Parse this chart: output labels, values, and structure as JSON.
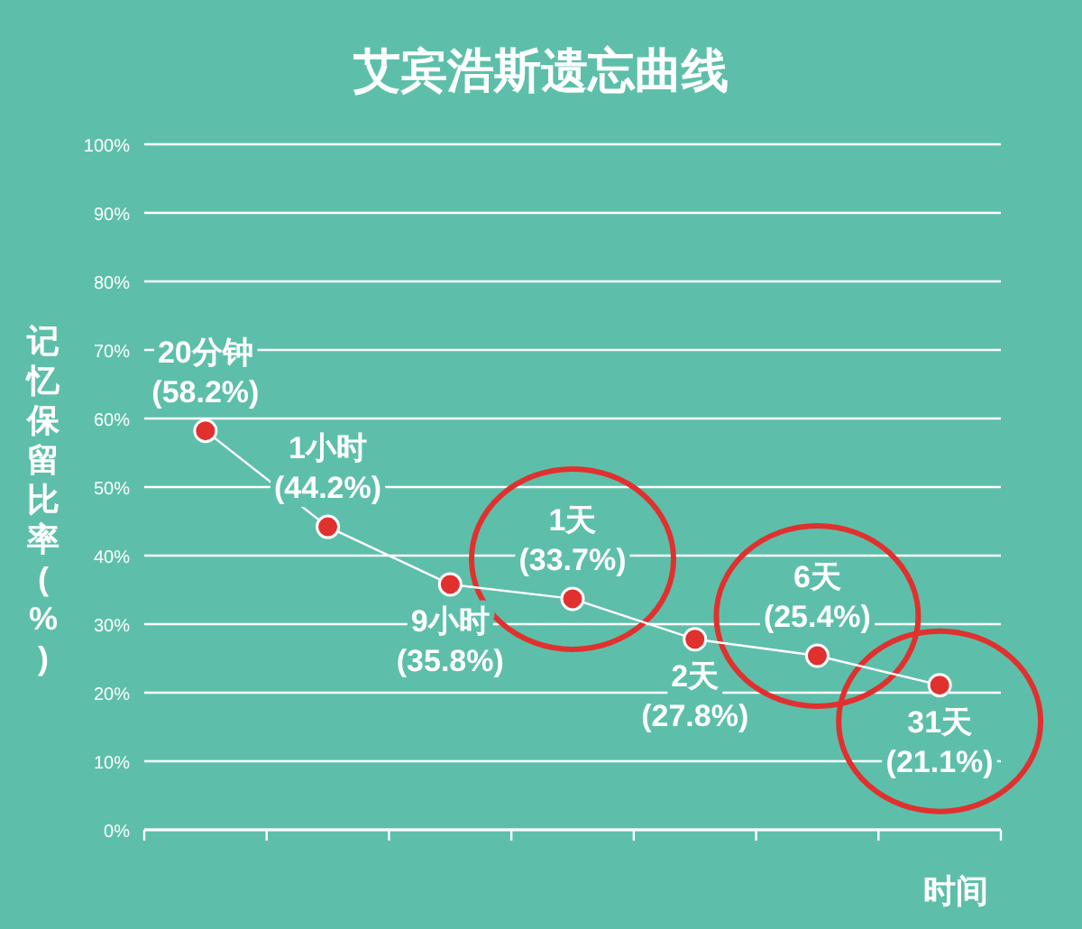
{
  "chart_data": {
    "type": "line",
    "title": "艾宾浩斯遗忘曲线",
    "ylabel": "记忆保留比率(%)",
    "xlabel": "时间",
    "categories": [
      "20分钟",
      "1小时",
      "9小时",
      "1天",
      "2天",
      "6天",
      "31天"
    ],
    "series": [
      {
        "color": "#e0312f",
        "values": [
          58.2,
          44.2,
          35.8,
          33.7,
          27.8,
          25.4,
          21.1
        ],
        "value_labels": [
          "(58.2%)",
          "(44.2%)",
          "(35.8%)",
          "(33.7%)",
          "(27.8%)",
          "(25.4%)",
          "(21.1%)"
        ]
      }
    ],
    "ylim": [
      0,
      100
    ],
    "yticks": [
      {
        "value": 0,
        "label": "0%"
      },
      {
        "value": 10,
        "label": "10%"
      },
      {
        "value": 20,
        "label": "20%"
      },
      {
        "value": 30,
        "label": "30%"
      },
      {
        "value": 40,
        "label": "40%"
      },
      {
        "value": 50,
        "label": "50%"
      },
      {
        "value": 60,
        "label": "60%"
      },
      {
        "value": 70,
        "label": "70%"
      },
      {
        "value": 80,
        "label": "80%"
      },
      {
        "value": 90,
        "label": "90%"
      },
      {
        "value": 100,
        "label": "100%"
      }
    ],
    "grid": "y",
    "marker": "circle",
    "line_style": "solid"
  }
}
